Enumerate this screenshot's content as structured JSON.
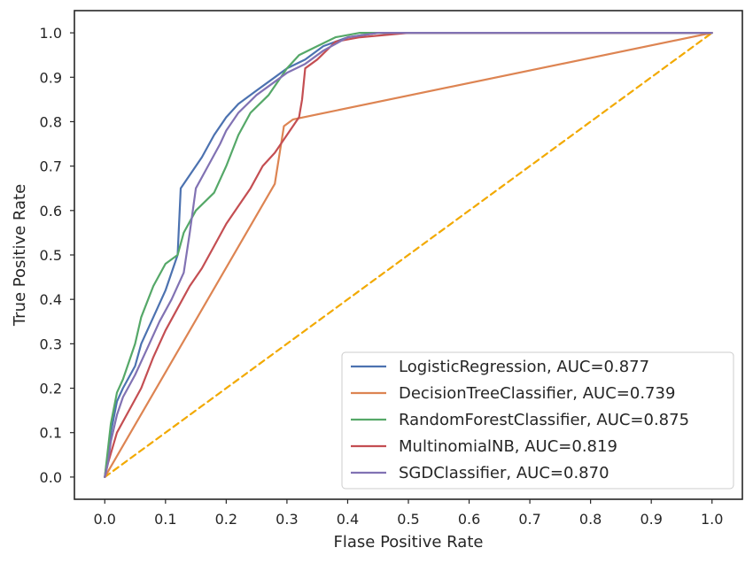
{
  "chart_data": {
    "type": "line",
    "xlabel": "Flase Positive Rate",
    "ylabel": "True Positive Rate",
    "xlim": [
      -0.05,
      1.05
    ],
    "ylim": [
      -0.05,
      1.05
    ],
    "xticks": [
      "0.0",
      "0.1",
      "0.2",
      "0.3",
      "0.4",
      "0.5",
      "0.6",
      "0.7",
      "0.8",
      "0.9",
      "1.0"
    ],
    "yticks": [
      "0.0",
      "0.1",
      "0.2",
      "0.3",
      "0.4",
      "0.5",
      "0.6",
      "0.7",
      "0.8",
      "0.9",
      "1.0"
    ],
    "grid": false,
    "legend_position": "lower-right",
    "series": [
      {
        "name": "LogisticRegression, AUC=0.877",
        "color": "#4c72b0",
        "x": [
          0.0,
          0.005,
          0.01,
          0.02,
          0.03,
          0.05,
          0.06,
          0.08,
          0.1,
          0.12,
          0.125,
          0.13,
          0.14,
          0.16,
          0.18,
          0.2,
          0.22,
          0.25,
          0.28,
          0.3,
          0.33,
          0.36,
          0.4,
          0.45,
          0.5,
          0.6,
          1.0
        ],
        "y": [
          0.0,
          0.05,
          0.1,
          0.17,
          0.2,
          0.25,
          0.3,
          0.36,
          0.42,
          0.5,
          0.65,
          0.66,
          0.68,
          0.72,
          0.77,
          0.81,
          0.84,
          0.87,
          0.9,
          0.92,
          0.94,
          0.97,
          0.99,
          1.0,
          1.0,
          1.0,
          1.0
        ]
      },
      {
        "name": "DecisionTreeClassifier, AUC=0.739",
        "color": "#dd8452",
        "x": [
          0.0,
          0.28,
          0.295,
          0.31,
          1.0
        ],
        "y": [
          0.0,
          0.66,
          0.79,
          0.805,
          1.0
        ]
      },
      {
        "name": "RandomForestClassifier, AUC=0.875",
        "color": "#55a868",
        "x": [
          0.0,
          0.005,
          0.01,
          0.02,
          0.03,
          0.04,
          0.05,
          0.06,
          0.08,
          0.1,
          0.12,
          0.13,
          0.15,
          0.18,
          0.2,
          0.22,
          0.24,
          0.27,
          0.3,
          0.32,
          0.35,
          0.38,
          0.42,
          0.5,
          1.0
        ],
        "y": [
          0.0,
          0.06,
          0.12,
          0.19,
          0.22,
          0.26,
          0.3,
          0.36,
          0.43,
          0.48,
          0.5,
          0.55,
          0.6,
          0.64,
          0.7,
          0.77,
          0.82,
          0.86,
          0.92,
          0.95,
          0.97,
          0.99,
          1.0,
          1.0,
          1.0
        ]
      },
      {
        "name": "MultinomialNB, AUC=0.819",
        "color": "#c44e52",
        "x": [
          0.0,
          0.005,
          0.02,
          0.04,
          0.06,
          0.08,
          0.1,
          0.12,
          0.14,
          0.16,
          0.18,
          0.2,
          0.22,
          0.24,
          0.26,
          0.28,
          0.3,
          0.32,
          0.325,
          0.33,
          0.35,
          0.38,
          0.42,
          0.5,
          1.0
        ],
        "y": [
          0.0,
          0.03,
          0.1,
          0.15,
          0.2,
          0.27,
          0.33,
          0.38,
          0.43,
          0.47,
          0.52,
          0.57,
          0.61,
          0.65,
          0.7,
          0.73,
          0.77,
          0.81,
          0.85,
          0.92,
          0.94,
          0.98,
          0.99,
          1.0,
          1.0
        ]
      },
      {
        "name": "SGDClassifier, AUC=0.870",
        "color": "#8172b3",
        "x": [
          0.0,
          0.005,
          0.01,
          0.02,
          0.03,
          0.05,
          0.07,
          0.09,
          0.11,
          0.13,
          0.14,
          0.15,
          0.17,
          0.19,
          0.2,
          0.22,
          0.25,
          0.28,
          0.3,
          0.33,
          0.36,
          0.4,
          0.45,
          0.5,
          1.0
        ],
        "y": [
          0.0,
          0.03,
          0.08,
          0.14,
          0.18,
          0.23,
          0.29,
          0.35,
          0.4,
          0.46,
          0.55,
          0.65,
          0.7,
          0.75,
          0.78,
          0.82,
          0.86,
          0.89,
          0.91,
          0.93,
          0.96,
          0.99,
          1.0,
          1.0,
          1.0
        ]
      },
      {
        "name": "",
        "color": "#f2a900",
        "dashed": true,
        "x": [
          0.0,
          1.0
        ],
        "y": [
          0.0,
          1.0
        ]
      }
    ]
  }
}
